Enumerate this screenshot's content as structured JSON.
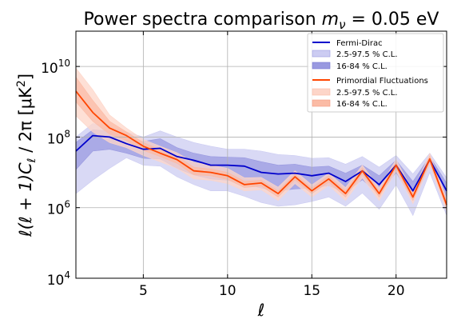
{
  "chart_data": {
    "type": "line",
    "title_text": "Power spectra comparison ",
    "title_math": "m",
    "title_math_sub": "ν",
    "title_math_rest": " = 0.05 eV",
    "xlabel": "ℓ",
    "ylabel": "ℓ(ℓ + 1)C",
    "ylabel_sub": "ℓ",
    "ylabel_rest": " / 2π [μK",
    "ylabel_sup": "2",
    "ylabel_end": "]",
    "xlim": [
      1,
      23
    ],
    "ylim_log10": [
      4,
      11
    ],
    "yscale": "log",
    "grid": true,
    "legend_position": "top-right",
    "x_ticks": [
      5,
      10,
      15,
      20
    ],
    "x_tick_labels": [
      "5",
      "10",
      "15",
      "20"
    ],
    "y_ticks_log10": [
      4,
      6,
      8,
      10
    ],
    "y_tick_labels": [
      {
        "base": "10",
        "exp": "4"
      },
      {
        "base": "10",
        "exp": "6"
      },
      {
        "base": "10",
        "exp": "8"
      },
      {
        "base": "10",
        "exp": "10"
      }
    ],
    "x": [
      1,
      2,
      3,
      4,
      5,
      6,
      7,
      8,
      9,
      10,
      11,
      12,
      13,
      14,
      15,
      16,
      17,
      18,
      19,
      20,
      21,
      22,
      23
    ],
    "series": [
      {
        "name": "Fermi-Dirac",
        "color": "#0000cc",
        "median": [
          40000000.0,
          110000000.0,
          100000000.0,
          65000000.0,
          45000000.0,
          48000000.0,
          28000000.0,
          22000000.0,
          16000000.0,
          16000000.0,
          15000000.0,
          10000000.0,
          9000000.0,
          9500000.0,
          8000000.0,
          9500000.0,
          5500000.0,
          11000000.0,
          4500000.0,
          16000000.0,
          3000000.0,
          23000000.0,
          3000000.0
        ],
        "band_outer": {
          "label": "2.5-97.5 % C.L.",
          "color": "#ccccf2",
          "lower": [
            2500000.0,
            6000000.0,
            13000000.0,
            26000000.0,
            16000000.0,
            15000000.0,
            7500000.0,
            4500000.0,
            3000000.0,
            3000000.0,
            2100000.0,
            1400000.0,
            1100000.0,
            1200000.0,
            1500000.0,
            2000000.0,
            1100000.0,
            2600000.0,
            900000.0,
            4500000.0,
            600000.0,
            10000000.0,
            600000.0
          ],
          "upper": [
            100000000.0,
            240000000.0,
            200000000.0,
            140000000.0,
            100000000.0,
            150000000.0,
            100000000.0,
            70000000.0,
            55000000.0,
            45000000.0,
            45000000.0,
            40000000.0,
            32000000.0,
            30000000.0,
            25000000.0,
            26000000.0,
            17000000.0,
            28000000.0,
            14000000.0,
            30000000.0,
            9000000.0,
            35000000.0,
            7000000.0
          ]
        },
        "band_inner": {
          "label": "16-84 % C.L.",
          "color": "#9999e0",
          "lower": [
            12000000.0,
            40000000.0,
            45000000.0,
            35000000.0,
            25000000.0,
            24000000.0,
            13000000.0,
            8500000.0,
            6500000.0,
            6000000.0,
            4800000.0,
            3600000.0,
            3000000.0,
            3400000.0,
            3600000.0,
            4200000.0,
            2700000.0,
            6200000.0,
            2300000.0,
            10000000.0,
            1600000.0,
            16000000.0,
            1600000.0
          ],
          "upper": [
            70000000.0,
            160000000.0,
            150000000.0,
            95000000.0,
            75000000.0,
            90000000.0,
            50000000.0,
            35000000.0,
            28000000.0,
            27000000.0,
            26000000.0,
            20000000.0,
            16000000.0,
            17000000.0,
            14000000.0,
            15000000.0,
            9500000.0,
            16000000.0,
            8000000.0,
            22000000.0,
            5500000.0,
            28000000.0,
            5000000.0
          ]
        }
      },
      {
        "name": "Primordial Fluctuations",
        "color": "#ff4500",
        "median": [
          2000000000.0,
          500000000.0,
          180000000.0,
          110000000.0,
          55000000.0,
          35000000.0,
          23000000.0,
          11000000.0,
          10000000.0,
          8000000.0,
          4500000.0,
          5000000.0,
          2500000.0,
          7500000.0,
          3000000.0,
          6500000.0,
          2500000.0,
          11000000.0,
          2500000.0,
          16000000.0,
          2000000.0,
          24000000.0,
          1200000.0
        ],
        "band_outer": {
          "label": "2.5-97.5 % C.L.",
          "color": "#fdd5c8",
          "lower": [
            400000000.0,
            140000000.0,
            70000000.0,
            50000000.0,
            30000000.0,
            20000000.0,
            13000000.0,
            6500000.0,
            6000000.0,
            4800000.0,
            3000000.0,
            3200000.0,
            1600000.0,
            4800000.0,
            2000000.0,
            4300000.0,
            1600000.0,
            7000000.0,
            1600000.0,
            11000000.0,
            1300000.0,
            16000000.0,
            800000.0
          ],
          "upper": [
            9000000000.0,
            2200000000.0,
            420000000.0,
            180000000.0,
            85000000.0,
            55000000.0,
            36000000.0,
            19000000.0,
            16000000.0,
            13000000.0,
            7000000.0,
            7200000.0,
            3800000.0,
            11000000.0,
            4400000.0,
            9500000.0,
            3700000.0,
            16000000.0,
            3600000.0,
            23000000.0,
            2900000.0,
            34000000.0,
            1800000.0
          ]
        },
        "band_inner": {
          "label": "16-84 % C.L.",
          "color": "#fbbba5",
          "lower": [
            1000000000.0,
            280000000.0,
            120000000.0,
            80000000.0,
            42000000.0,
            28000000.0,
            18000000.0,
            8500000.0,
            8000000.0,
            6300000.0,
            3700000.0,
            4100000.0,
            2000000.0,
            6100000.0,
            2500000.0,
            5300000.0,
            2000000.0,
            9000000.0,
            2000000.0,
            13000000.0,
            1600000.0,
            20000000.0,
            1000000.0
          ],
          "upper": [
            5000000000.0,
            1100000000.0,
            280000000.0,
            140000000.0,
            70000000.0,
            44000000.0,
            29000000.0,
            14000000.0,
            12500000.0,
            10000000.0,
            5600000.0,
            6000000.0,
            3000000.0,
            9000000.0,
            3600000.0,
            8000000.0,
            3000000.0,
            13500000.0,
            3000000.0,
            19500000.0,
            2500000.0,
            29000000.0,
            1500000.0
          ]
        }
      }
    ]
  }
}
